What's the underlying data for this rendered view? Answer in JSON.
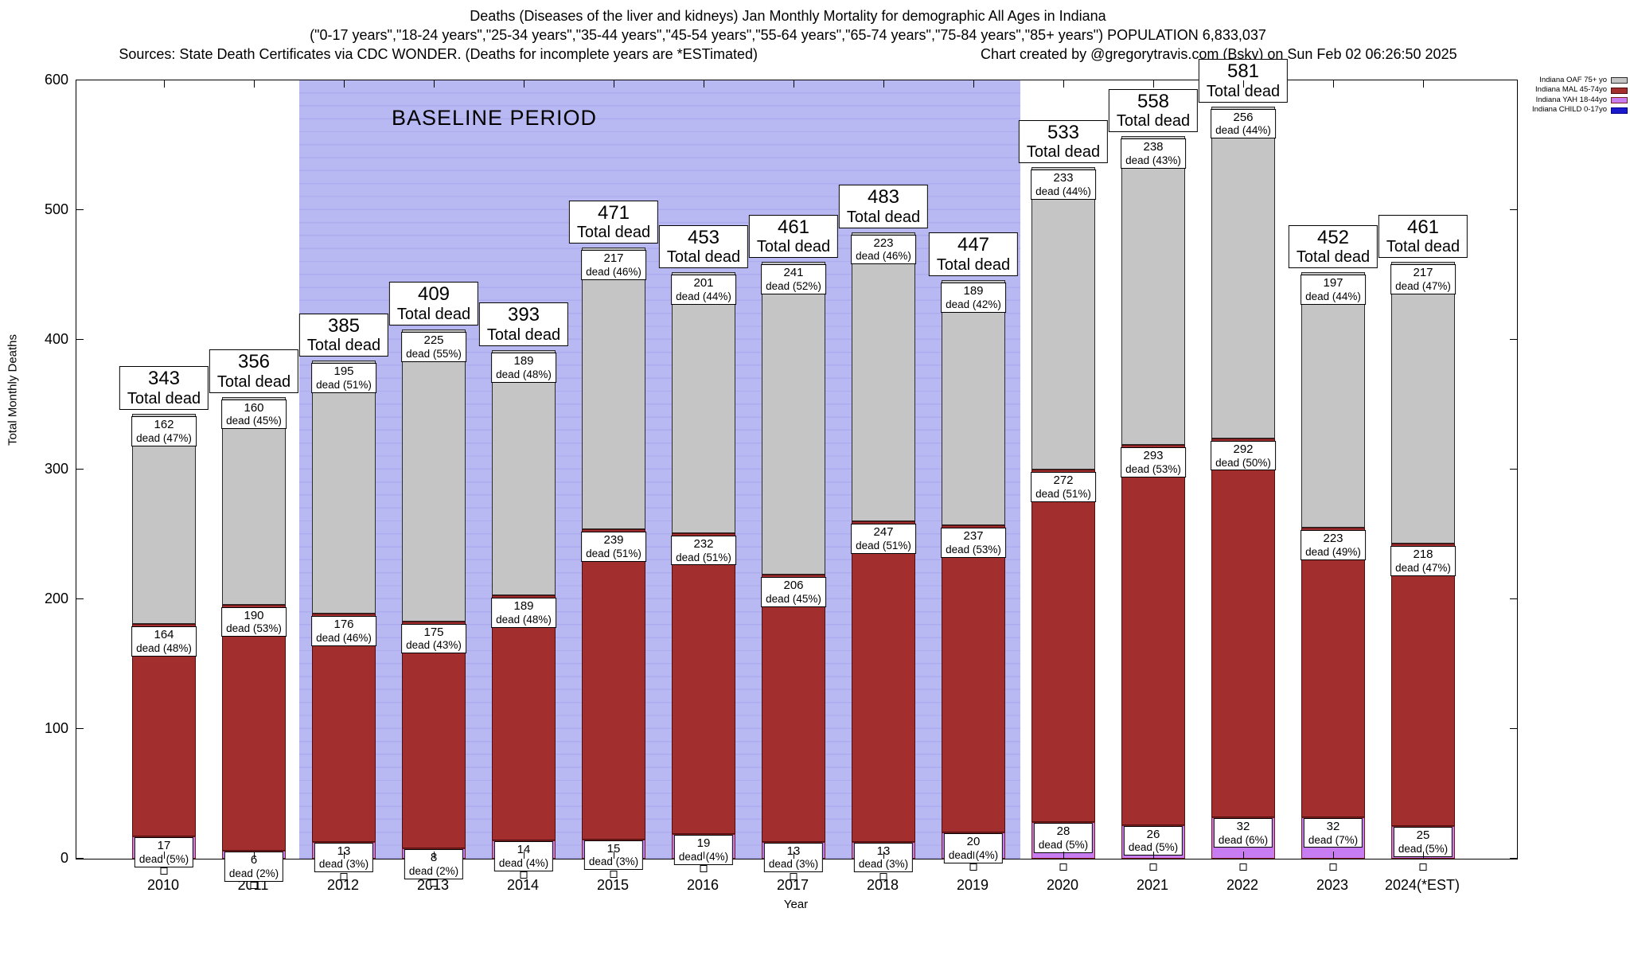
{
  "header": {
    "title_line1": "Deaths (Diseases of the liver and kidneys) Jan Monthly Mortality for demographic All Ages in Indiana",
    "title_line2": "(\"0-17 years\",\"18-24 years\",\"25-34 years\",\"35-44 years\",\"45-54 years\",\"55-64 years\",\"65-74 years\",\"75-84 years\",\"85+ years\") POPULATION 6,833,037",
    "sources": "Sources: State Death Certificates via CDC WONDER. (Deaths for incomplete years are *ESTimated)",
    "credit": "Chart created by @gregorytravis.com (Bsky) on Sun Feb 02 06:26:50 2025"
  },
  "chart_data": {
    "type": "bar",
    "stacked": true,
    "title": "Deaths (Diseases of the liver and kidneys) Jan Monthly Mortality for demographic All Ages in Indiana",
    "xlabel": "Year",
    "ylabel": "Total Monthly Deaths",
    "ylim": [
      0,
      600
    ],
    "yticks": [
      0,
      100,
      200,
      300,
      400,
      500,
      600
    ],
    "grid": false,
    "legend_position": "top-right-outside",
    "baseline_period": {
      "label": "BASELINE PERIOD",
      "from_year": "2012",
      "to_year": "2019"
    },
    "total_label": "Total dead",
    "categories": [
      "2010",
      "2011",
      "2012",
      "2013",
      "2014",
      "2015",
      "2016",
      "2017",
      "2018",
      "2019",
      "2020",
      "2021",
      "2022",
      "2023",
      "2024(*EST)"
    ],
    "totals": [
      343,
      356,
      385,
      409,
      393,
      471,
      453,
      461,
      483,
      447,
      533,
      558,
      581,
      452,
      461
    ],
    "series": [
      {
        "name": "Indiana OAF 75+ yo",
        "color": "#c5c5c5",
        "border_color": "#2b2b2b",
        "values": [
          162,
          160,
          195,
          225,
          189,
          217,
          201,
          241,
          223,
          189,
          233,
          238,
          256,
          197,
          217
        ],
        "labels": [
          "dead (47%)",
          "dead (45%)",
          "dead (51%)",
          "dead (55%)",
          "dead (48%)",
          "dead (46%)",
          "dead (44%)",
          "dead (52%)",
          "dead (46%)",
          "dead (42%)",
          "dead (44%)",
          "dead (43%)",
          "dead (44%)",
          "dead (44%)",
          "dead (47%)"
        ]
      },
      {
        "name": "Indiana MAL 45-74yo",
        "color": "#a32e2e",
        "border_color": "#4f0f0f",
        "values": [
          164,
          190,
          176,
          175,
          189,
          239,
          232,
          206,
          247,
          237,
          272,
          293,
          292,
          223,
          218
        ],
        "labels": [
          "dead (48%)",
          "dead (53%)",
          "dead (46%)",
          "dead (43%)",
          "dead (48%)",
          "dead (51%)",
          "dead (51%)",
          "dead (45%)",
          "dead (51%)",
          "dead (53%)",
          "dead (51%)",
          "dead (53%)",
          "dead (50%)",
          "dead (49%)",
          "dead (47%)"
        ]
      },
      {
        "name": "Indiana YAH 18-44yo",
        "color": "#c87cf2",
        "border_color": "#7c1d1d",
        "values": [
          17,
          6,
          13,
          8,
          14,
          15,
          19,
          13,
          13,
          20,
          28,
          26,
          32,
          32,
          25
        ],
        "labels": [
          "dead (5%)",
          "dead (2%)",
          "dead (3%)",
          "dead (2%)",
          "dead (4%)",
          "dead (3%)",
          "dead (4%)",
          "dead (3%)",
          "dead (3%)",
          "dead (4%)",
          "dead (5%)",
          "dead (5%)",
          "dead (6%)",
          "dead (7%)",
          "dead (5%)"
        ]
      },
      {
        "name": "Indiana CHILD 0-17yo",
        "color": "#1a1acc",
        "border_color": "#00008b",
        "values": []
      }
    ]
  }
}
